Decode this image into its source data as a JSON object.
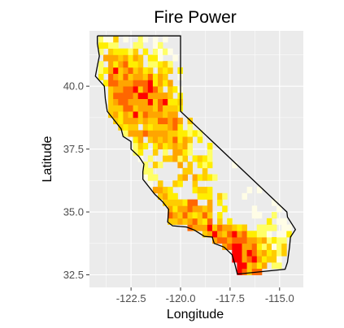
{
  "chart_data": {
    "type": "heatmap",
    "title": "Fire Power",
    "xlabel": "Longitude",
    "ylabel": "Latitude",
    "xlim": [
      -124.6,
      -113.8
    ],
    "ylim": [
      32.0,
      42.2
    ],
    "x_ticks": [
      -122.5,
      -120.0,
      -117.5,
      -115.0
    ],
    "x_tick_labels": [
      "-122.5",
      "-120.0",
      "-117.5",
      "-115.0"
    ],
    "y_ticks": [
      32.5,
      35.0,
      37.5,
      40.0
    ],
    "y_tick_labels": [
      "32.5",
      "35.0",
      "37.5",
      "40.0"
    ],
    "grid": true,
    "panel_background": "#ebebeb",
    "grid_color": "#ffffff",
    "color_scale": [
      "#fffde6",
      "#ffff66",
      "#ffee00",
      "#ffcc00",
      "#ffa500",
      "#ff6600",
      "#ff0000"
    ],
    "outline_color": "#000000",
    "tile_size_deg": 0.25,
    "state_outline": [
      [
        -124.2,
        42.0
      ],
      [
        -120.0,
        42.0
      ],
      [
        -120.0,
        39.0
      ],
      [
        -114.63,
        35.0
      ],
      [
        -114.6,
        34.8
      ],
      [
        -114.2,
        34.3
      ],
      [
        -114.45,
        34.0
      ],
      [
        -114.5,
        33.6
      ],
      [
        -114.6,
        33.0
      ],
      [
        -114.72,
        32.72
      ],
      [
        -117.13,
        32.53
      ],
      [
        -117.25,
        32.9
      ],
      [
        -117.4,
        33.3
      ],
      [
        -117.8,
        33.6
      ],
      [
        -118.3,
        33.75
      ],
      [
        -118.4,
        34.0
      ],
      [
        -118.8,
        34.03
      ],
      [
        -119.3,
        34.28
      ],
      [
        -119.7,
        34.4
      ],
      [
        -120.4,
        34.45
      ],
      [
        -120.65,
        34.6
      ],
      [
        -120.6,
        35.1
      ],
      [
        -120.9,
        35.4
      ],
      [
        -121.3,
        35.7
      ],
      [
        -121.9,
        36.3
      ],
      [
        -121.9,
        36.6
      ],
      [
        -121.85,
        36.9
      ],
      [
        -122.1,
        37.2
      ],
      [
        -122.5,
        37.5
      ],
      [
        -122.5,
        37.8
      ],
      [
        -122.9,
        38.0
      ],
      [
        -123.0,
        38.3
      ],
      [
        -123.3,
        38.6
      ],
      [
        -123.7,
        39.0
      ],
      [
        -123.8,
        39.5
      ],
      [
        -123.85,
        40.0
      ],
      [
        -124.3,
        40.4
      ],
      [
        -124.2,
        40.8
      ],
      [
        -124.1,
        41.2
      ],
      [
        -124.2,
        41.7
      ],
      [
        -124.2,
        42.0
      ]
    ],
    "hotspots": [
      {
        "lon": -122.8,
        "lat": 39.2,
        "w": 2.2
      },
      {
        "lon": -123.2,
        "lat": 40.8,
        "w": 2.0
      },
      {
        "lon": -121.8,
        "lat": 40.2,
        "w": 1.5
      },
      {
        "lon": -120.9,
        "lat": 39.3,
        "w": 1.4
      },
      {
        "lon": -120.7,
        "lat": 38.4,
        "w": 1.3
      },
      {
        "lon": -119.8,
        "lat": 37.5,
        "w": 1.2
      },
      {
        "lon": -118.9,
        "lat": 36.3,
        "w": 1.1
      },
      {
        "lon": -120.8,
        "lat": 35.6,
        "w": 1.5
      },
      {
        "lon": -119.9,
        "lat": 34.7,
        "w": 1.6
      },
      {
        "lon": -118.4,
        "lat": 34.3,
        "w": 2.0
      },
      {
        "lon": -117.3,
        "lat": 33.7,
        "w": 1.8
      },
      {
        "lon": -116.8,
        "lat": 32.9,
        "w": 2.0
      },
      {
        "lon": -115.6,
        "lat": 33.4,
        "w": 1.0
      },
      {
        "lon": -117.8,
        "lat": 41.4,
        "w": 1.3
      },
      {
        "lon": -116.0,
        "lat": 41.3,
        "w": 1.2
      },
      {
        "lon": -115.0,
        "lat": 40.0,
        "w": 1.0
      },
      {
        "lon": -114.5,
        "lat": 37.6,
        "w": 0.8
      },
      {
        "lon": -116.5,
        "lat": 39.2,
        "w": 0.6
      },
      {
        "lon": -122.3,
        "lat": 37.8,
        "w": 0.9
      }
    ]
  }
}
